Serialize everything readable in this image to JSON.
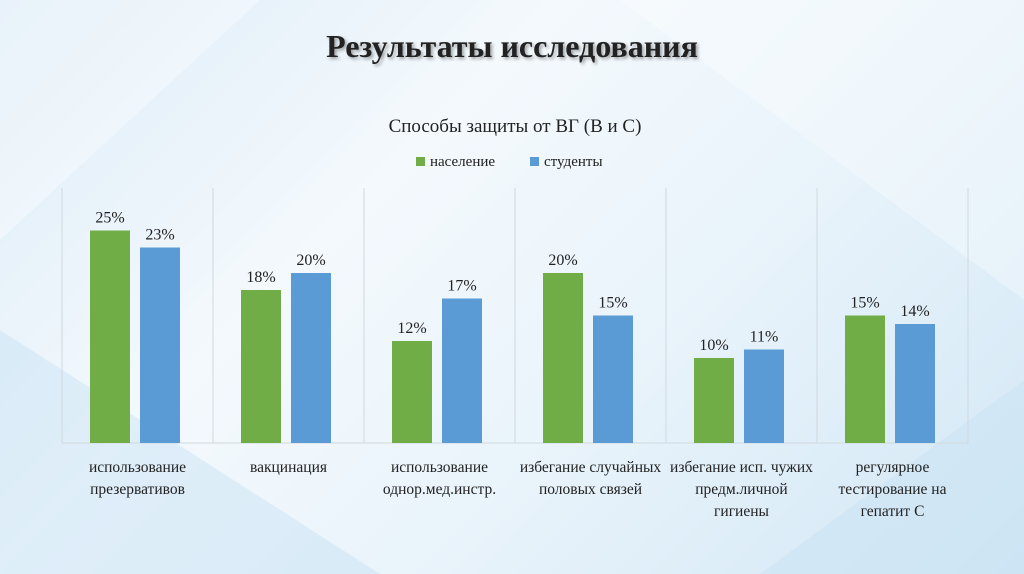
{
  "slide_title": "Результаты исследования",
  "chart_data": {
    "type": "bar",
    "title": "Способы защиты от ВГ (В и С)",
    "categories": [
      "использование презервативов",
      "вакцинация",
      "использование однор.мед.инстр.",
      "избегание случайных половых связей",
      "избегание исп. чужих предм.личной гигиены",
      "регулярное тестирование на гепатит С"
    ],
    "series": [
      {
        "name": "население",
        "color": "#70ad47",
        "values": [
          25,
          18,
          12,
          20,
          10,
          15
        ],
        "value_labels": [
          "25%",
          "18%",
          "12%",
          "20%",
          "10%",
          "15%"
        ]
      },
      {
        "name": "студенты",
        "color": "#5b9bd5",
        "values": [
          23,
          20,
          17,
          15,
          11,
          14
        ],
        "value_labels": [
          "23%",
          "20%",
          "17%",
          "15%",
          "11%",
          "14%"
        ]
      }
    ],
    "ylim": [
      0,
      30
    ],
    "legend": "top"
  }
}
